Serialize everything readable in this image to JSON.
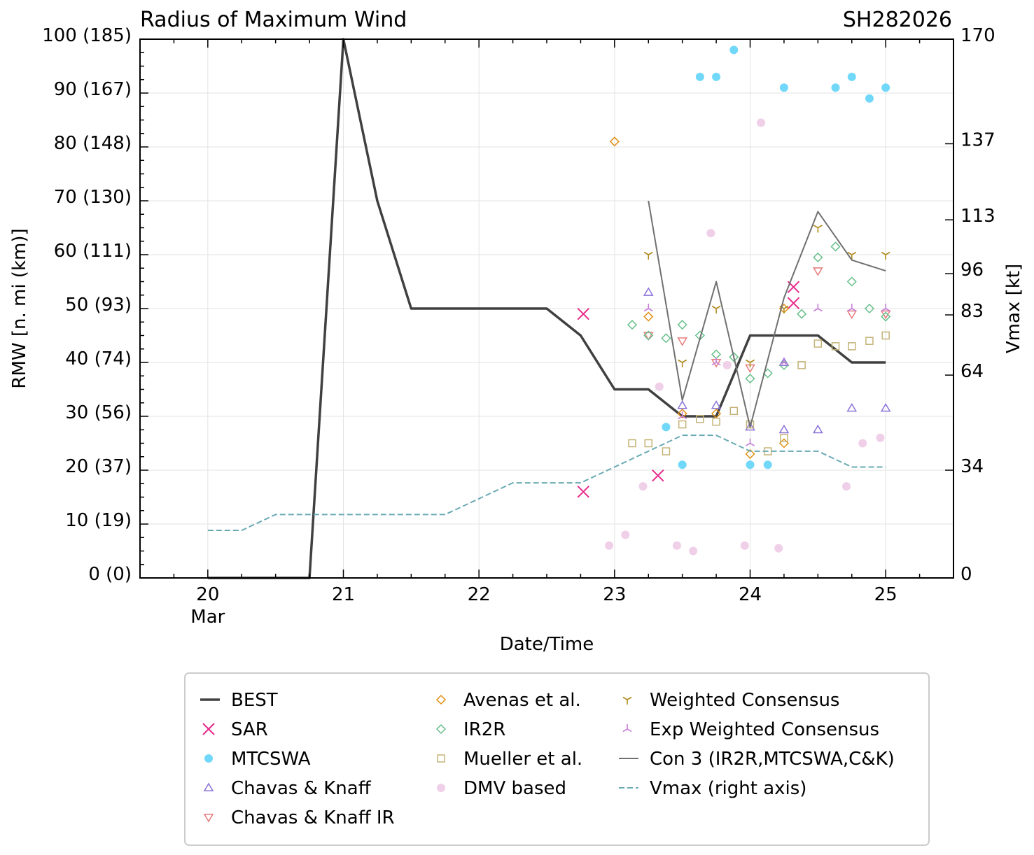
{
  "chart_data": {
    "type": "scatter",
    "title": "Radius of Maximum Wind",
    "storm_id": "SH282026",
    "xlabel": "Date/Time",
    "ylabel": "RMW [n. mi (km)]",
    "y2label": "Vmax [kt]",
    "xlim": [
      19.5,
      25.5
    ],
    "ylim": [
      0,
      100
    ],
    "y2lim": [
      0,
      170
    ],
    "x_ticks": [
      {
        "value": 20,
        "label": "20",
        "sublabel": "Mar"
      },
      {
        "value": 21,
        "label": "21"
      },
      {
        "value": 22,
        "label": "22"
      },
      {
        "value": 23,
        "label": "23"
      },
      {
        "value": 24,
        "label": "24"
      },
      {
        "value": 25,
        "label": "25"
      }
    ],
    "y_ticks": [
      {
        "value": 0,
        "label": "0 (0)"
      },
      {
        "value": 10,
        "label": "10 (19)"
      },
      {
        "value": 20,
        "label": "20 (37)"
      },
      {
        "value": 30,
        "label": "30 (56)"
      },
      {
        "value": 40,
        "label": "40 (74)"
      },
      {
        "value": 50,
        "label": "50 (93)"
      },
      {
        "value": 60,
        "label": "60 (111)"
      },
      {
        "value": 70,
        "label": "70 (130)"
      },
      {
        "value": 80,
        "label": "80 (148)"
      },
      {
        "value": 90,
        "label": "90 (167)"
      },
      {
        "value": 100,
        "label": "100 (185)"
      }
    ],
    "y2_ticks": [
      {
        "value": 0,
        "label": "0"
      },
      {
        "value": 34,
        "label": "34"
      },
      {
        "value": 64,
        "label": "64"
      },
      {
        "value": 83,
        "label": "83"
      },
      {
        "value": 96,
        "label": "96"
      },
      {
        "value": 113,
        "label": "113"
      },
      {
        "value": 137,
        "label": "137"
      },
      {
        "value": 170,
        "label": "170"
      }
    ],
    "grid": true,
    "legend_placement": "bottom",
    "series": [
      {
        "name": "BEST",
        "style": "line",
        "color": "#404040",
        "width": 3.5,
        "x": [
          20,
          20.25,
          20.5,
          20.75,
          21,
          21.25,
          21.5,
          21.75,
          22,
          22.25,
          22.5,
          22.75,
          23,
          23.25,
          23.5,
          23.75,
          24,
          24.25,
          24.5,
          24.75,
          25
        ],
        "y": [
          0,
          0,
          0,
          0,
          100,
          70,
          50,
          50,
          50,
          50,
          50,
          45,
          35,
          35,
          30,
          30,
          45,
          45,
          45,
          40,
          40
        ]
      },
      {
        "name": "SAR",
        "style": "marker",
        "marker": "x",
        "color": "#e7298a",
        "x": [
          22.77,
          22.77,
          23.32,
          24.32,
          24.32
        ],
        "y": [
          49,
          16,
          19,
          54,
          51
        ]
      },
      {
        "name": "MTCSWA",
        "style": "marker",
        "marker": "circle",
        "color": "#72d8fa",
        "x": [
          23.38,
          23.5,
          23.63,
          23.75,
          23.88,
          24,
          24.13,
          24.25,
          24.63,
          24.75,
          24.88,
          25
        ],
        "y": [
          28,
          21,
          93,
          93,
          98,
          21,
          21,
          91,
          91,
          93,
          89,
          91
        ]
      },
      {
        "name": "Chavas & Knaff",
        "style": "marker",
        "marker": "triangle-up",
        "color": "#8b72d9",
        "x": [
          23.25,
          23.5,
          23.75,
          24,
          24.25,
          24.25,
          24.5,
          24.75,
          25
        ],
        "y": [
          53,
          32,
          32,
          28,
          40,
          27.5,
          27.5,
          31.5,
          31.5
        ]
      },
      {
        "name": "Chavas & Knaff IR",
        "style": "marker",
        "marker": "triangle-down",
        "color": "#e67b7b",
        "x": [
          23.25,
          23.5,
          23.75,
          24,
          24.5,
          24.75,
          25
        ],
        "y": [
          45,
          44,
          40,
          39,
          57,
          49,
          49
        ]
      },
      {
        "name": "Avenas et al.",
        "style": "marker",
        "marker": "diamond",
        "color": "#e08f12",
        "x": [
          23,
          23.25,
          23.5,
          23.75,
          24,
          24.25,
          24.25
        ],
        "y": [
          81,
          48.5,
          30.5,
          30.5,
          23,
          25,
          50
        ]
      },
      {
        "name": "IR2R",
        "style": "marker",
        "marker": "diamond",
        "color": "#66bf8a",
        "x": [
          23.13,
          23.25,
          23.38,
          23.5,
          23.63,
          23.75,
          23.88,
          24,
          24.13,
          24.25,
          24.38,
          24.5,
          24.63,
          24.75,
          24.88,
          25
        ],
        "y": [
          47,
          45,
          44.5,
          47,
          45,
          41.5,
          41,
          37,
          38,
          39.5,
          49,
          59.5,
          61.5,
          55,
          50,
          48.5
        ]
      },
      {
        "name": "Mueller et al.",
        "style": "marker",
        "marker": "square",
        "color": "#c4b377",
        "x": [
          23.13,
          23.25,
          23.38,
          23.5,
          23.63,
          23.75,
          23.88,
          24,
          24.13,
          24.25,
          24.38,
          24.5,
          24.63,
          24.75,
          24.88,
          25
        ],
        "y": [
          25,
          25,
          23.5,
          28.5,
          29.5,
          29,
          31,
          28.5,
          23.5,
          26,
          39.5,
          43.5,
          43,
          43,
          44,
          45
        ]
      },
      {
        "name": "DMV based",
        "style": "marker",
        "marker": "circle",
        "color": "#f0cfe8",
        "x": [
          22.96,
          23.08,
          23.21,
          23.33,
          23.46,
          23.58,
          23.71,
          23.83,
          23.96,
          24.08,
          24.21,
          24.71,
          24.83,
          24.96
        ],
        "y": [
          6,
          8,
          17,
          35.5,
          6,
          5,
          64,
          39.5,
          6,
          84.5,
          5.5,
          17,
          25,
          26
        ]
      },
      {
        "name": "Weighted Consensus",
        "style": "marker",
        "marker": "tri-down",
        "color": "#b08a1e",
        "x": [
          23.25,
          23.5,
          23.75,
          24,
          24.25,
          24.5,
          24.75,
          25
        ],
        "y": [
          60,
          40,
          50,
          40,
          50,
          65,
          60,
          60
        ]
      },
      {
        "name": "Exp Weighted Consensus",
        "style": "marker",
        "marker": "tri-up",
        "color": "#c77fd9",
        "x": [
          23.25,
          23.5,
          23.75,
          24,
          24.25,
          24.5,
          24.75,
          25
        ],
        "y": [
          50,
          30,
          40,
          25,
          40,
          50,
          50,
          50
        ]
      },
      {
        "name": "Con 3 (IR2R,MTCSWA,C&K)",
        "style": "line",
        "color": "#707070",
        "width": 2,
        "x": [
          23.25,
          23.5,
          23.75,
          24,
          24.25,
          24.5,
          24.75,
          25
        ],
        "y": [
          70,
          33,
          55,
          28,
          52,
          68,
          59,
          57
        ]
      },
      {
        "name": "Vmax (right axis)",
        "style": "dashed",
        "color": "#6aaab4",
        "width": 2,
        "axis": "right",
        "x": [
          20,
          20.25,
          20.5,
          20.75,
          21,
          21.25,
          21.5,
          21.75,
          22,
          22.25,
          22.5,
          22.75,
          23,
          23.25,
          23.5,
          23.75,
          24,
          24.25,
          24.5,
          24.75,
          25
        ],
        "y": [
          15,
          15,
          20,
          20,
          20,
          20,
          20,
          20,
          25,
          30,
          30,
          30,
          35,
          40,
          45,
          45,
          40,
          40,
          40,
          35,
          35
        ]
      }
    ]
  }
}
